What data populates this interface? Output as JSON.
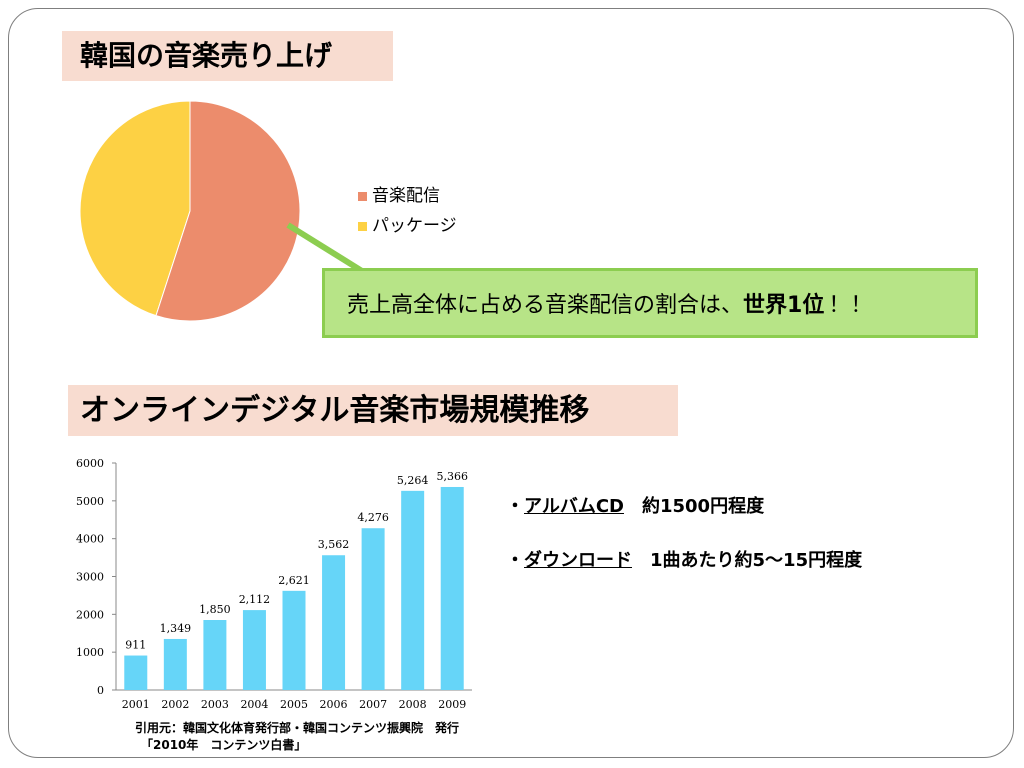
{
  "slide": {
    "title1": "韓国の音楽売り上げ",
    "title2": "オンラインデジタル音楽市場規模推移",
    "callout": {
      "text": "売上高全体に占める音楽配信の割合は、",
      "emphasis": "世界1位",
      "suffix": "！！"
    },
    "notes": [
      {
        "bullet": "・",
        "item": "アルバムCD",
        "detail": "約1500円程度"
      },
      {
        "bullet": "・",
        "item": "ダウンロード",
        "detail": "1曲あたり約5～15円程度"
      }
    ],
    "source": {
      "line1": "引用元：韓国文化体育発行部・韓国コンテンツ振興院　発行",
      "line2": "「2010年　コンテンツ白書」"
    }
  },
  "chart_data": [
    {
      "type": "pie",
      "categories": [
        "音楽配信",
        "パッケージ"
      ],
      "values": [
        55,
        45
      ],
      "colors": [
        "#ec8c6c",
        "#fdd144"
      ],
      "legend_position": "right"
    },
    {
      "type": "bar",
      "categories": [
        "2001",
        "2002",
        "2003",
        "2004",
        "2005",
        "2006",
        "2007",
        "2008",
        "2009"
      ],
      "values": [
        911,
        1349,
        1850,
        2112,
        2621,
        3562,
        4276,
        5264,
        5366
      ],
      "value_labels": [
        "911",
        "1,349",
        "1,850",
        "2,112",
        "2,621",
        "3,562",
        "4,276",
        "5,264",
        "5,366"
      ],
      "ylim": [
        0,
        6000
      ],
      "yticks": [
        "0",
        "1000",
        "2000",
        "3000",
        "4000",
        "5000",
        "6000"
      ],
      "bar_color": "#66d5f8",
      "grid": false
    }
  ]
}
